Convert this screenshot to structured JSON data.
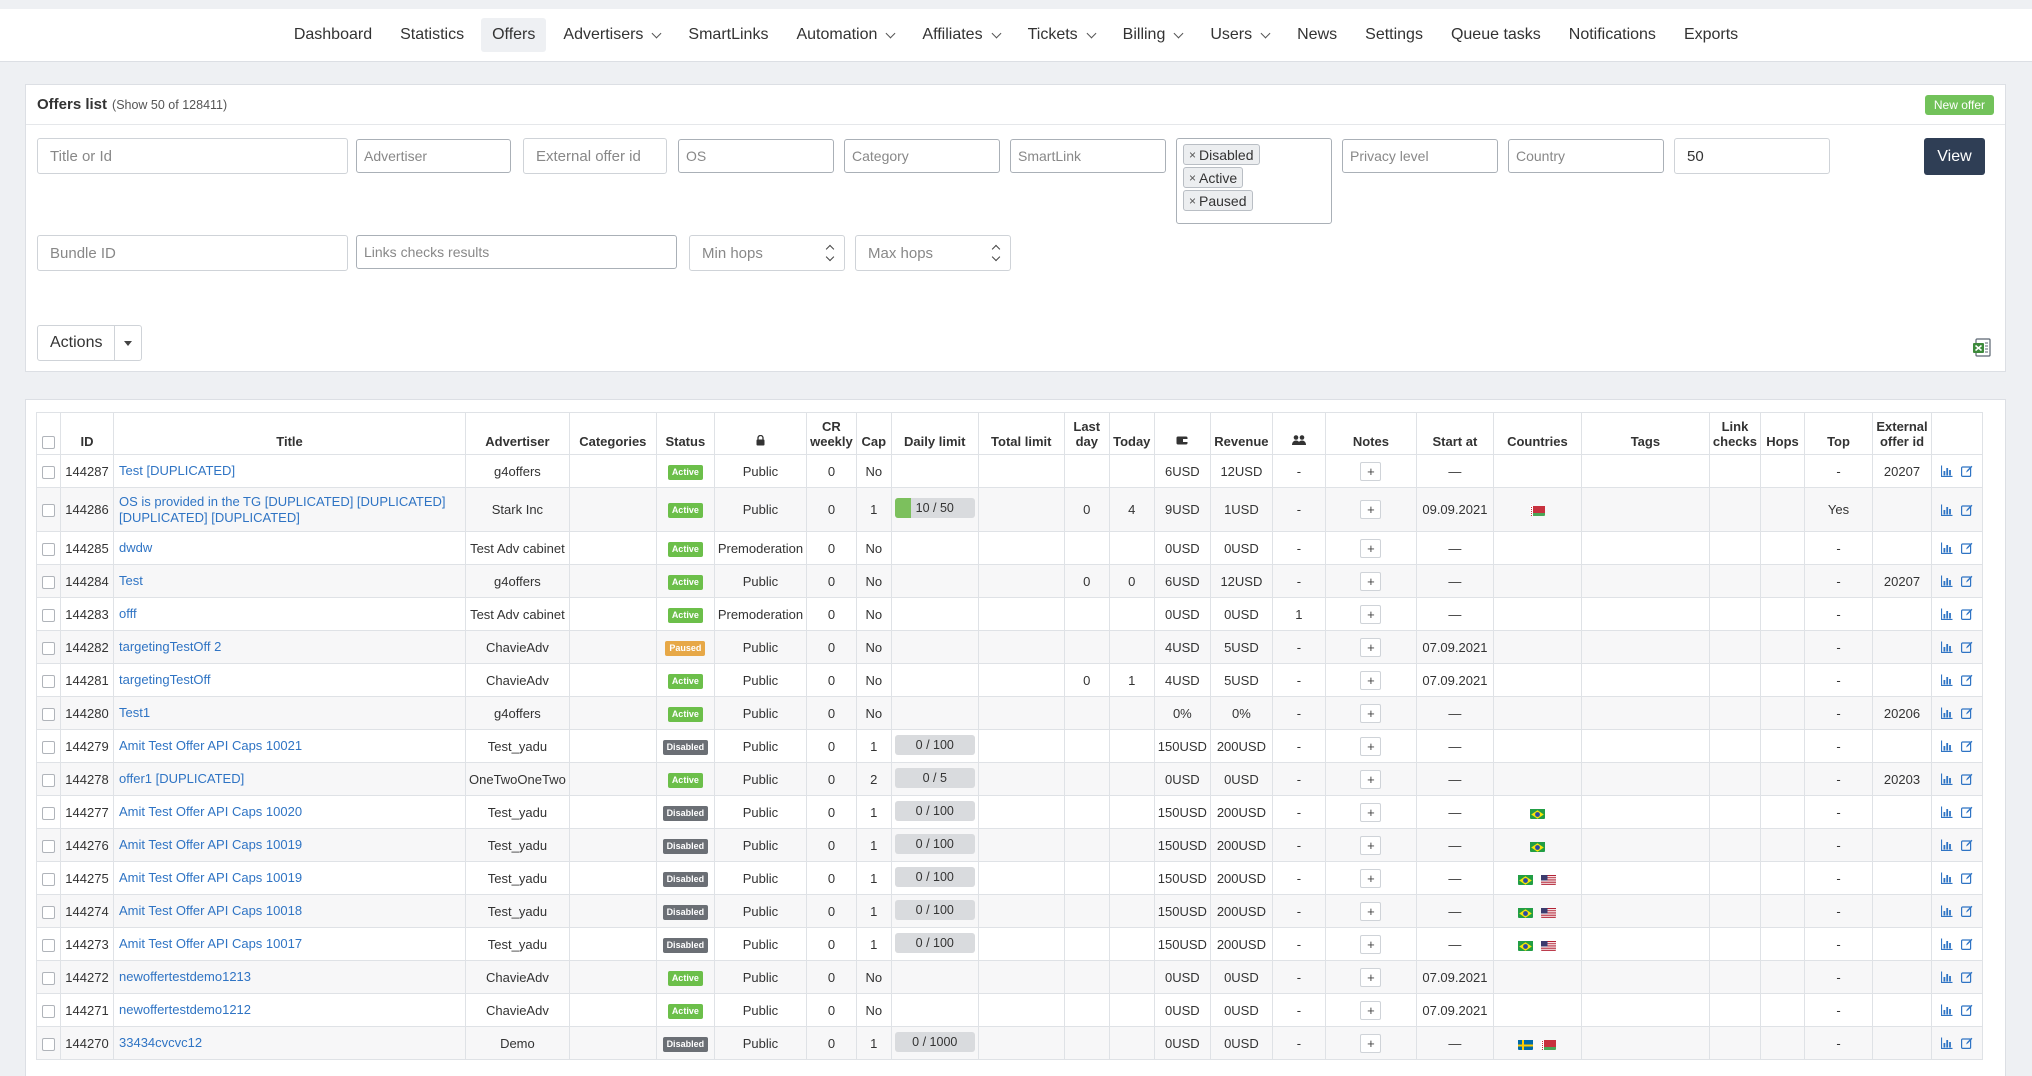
{
  "nav": {
    "items": [
      {
        "label": "Dashboard",
        "dropdown": false,
        "active": false
      },
      {
        "label": "Statistics",
        "dropdown": false,
        "active": false
      },
      {
        "label": "Offers",
        "dropdown": false,
        "active": true
      },
      {
        "label": "Advertisers",
        "dropdown": true,
        "active": false
      },
      {
        "label": "SmartLinks",
        "dropdown": false,
        "active": false
      },
      {
        "label": "Automation",
        "dropdown": true,
        "active": false
      },
      {
        "label": "Affiliates",
        "dropdown": true,
        "active": false
      },
      {
        "label": "Tickets",
        "dropdown": true,
        "active": false
      },
      {
        "label": "Billing",
        "dropdown": true,
        "active": false
      },
      {
        "label": "Users",
        "dropdown": true,
        "active": false
      },
      {
        "label": "News",
        "dropdown": false,
        "active": false
      },
      {
        "label": "Settings",
        "dropdown": false,
        "active": false
      },
      {
        "label": "Queue tasks",
        "dropdown": false,
        "active": false
      },
      {
        "label": "Notifications",
        "dropdown": false,
        "active": false
      },
      {
        "label": "Exports",
        "dropdown": false,
        "active": false
      }
    ]
  },
  "filters": {
    "title": "Offers list",
    "subtitle": "(Show 50 of 128411)",
    "new_offer_label": "New offer",
    "title_or_id_placeholder": "Title or Id",
    "advertiser_placeholder": "Advertiser",
    "external_offer_id_placeholder": "External offer id",
    "os_placeholder": "OS",
    "category_placeholder": "Category",
    "smartlink_placeholder": "SmartLink",
    "status_tags": [
      "Disabled",
      "Active",
      "Paused"
    ],
    "privacy_level_placeholder": "Privacy level",
    "country_placeholder": "Country",
    "per_page_value": "50",
    "view_label": "View",
    "bundle_id_placeholder": "Bundle ID",
    "links_checks_placeholder": "Links checks results",
    "min_hops_placeholder": "Min hops",
    "max_hops_placeholder": "Max hops",
    "actions_label": "Actions"
  },
  "table": {
    "headers": {
      "id": "ID",
      "title": "Title",
      "advertiser": "Advertiser",
      "categories": "Categories",
      "status": "Status",
      "cr_weekly": "CR weekly",
      "cap": "Cap",
      "daily_limit": "Daily limit",
      "total_limit": "Total limit",
      "last_day": "Last day",
      "today": "Today",
      "revenue": "Revenue",
      "notes": "Notes",
      "start_at": "Start at",
      "countries": "Countries",
      "tags": "Tags",
      "link_checks": "Link checks",
      "hops": "Hops",
      "top": "Top",
      "external_offer_id": "External offer id"
    },
    "rows": [
      {
        "id": "144287",
        "title": "Test [DUPLICATED]",
        "advertiser": "g4offers",
        "status": "Active",
        "privacy": "Public",
        "cr": "0",
        "cap": "No",
        "daily": "",
        "daily_fill": 0,
        "last_day": "",
        "today": "",
        "payout": "6USD",
        "revenue": "12USD",
        "affiliates": "-",
        "start": "—",
        "flags": [],
        "top": "-",
        "ext": "20207"
      },
      {
        "id": "144286",
        "title": "OS is provided in the TG [DUPLICATED] [DUPLICATED] [DUPLICATED] [DUPLICATED]",
        "advertiser": "Stark Inc",
        "status": "Active",
        "privacy": "Public",
        "cr": "0",
        "cap": "1",
        "daily": "10 / 50",
        "daily_fill": 0.2,
        "last_day": "0",
        "today": "4",
        "payout": "9USD",
        "revenue": "1USD",
        "affiliates": "-",
        "start": "09.09.2021",
        "flags": [
          "by"
        ],
        "top": "Yes",
        "ext": ""
      },
      {
        "id": "144285",
        "title": "dwdw",
        "advertiser": "Test Adv cabinet",
        "status": "Active",
        "privacy": "Premoderation",
        "cr": "0",
        "cap": "No",
        "daily": "",
        "daily_fill": 0,
        "last_day": "",
        "today": "",
        "payout": "0USD",
        "revenue": "0USD",
        "affiliates": "-",
        "start": "—",
        "flags": [],
        "top": "-",
        "ext": ""
      },
      {
        "id": "144284",
        "title": "Test",
        "advertiser": "g4offers",
        "status": "Active",
        "privacy": "Public",
        "cr": "0",
        "cap": "No",
        "daily": "",
        "daily_fill": 0,
        "last_day": "0",
        "today": "0",
        "payout": "6USD",
        "revenue": "12USD",
        "affiliates": "-",
        "start": "—",
        "flags": [],
        "top": "-",
        "ext": "20207"
      },
      {
        "id": "144283",
        "title": "offf",
        "advertiser": "Test Adv cabinet",
        "status": "Active",
        "privacy": "Premoderation",
        "cr": "0",
        "cap": "No",
        "daily": "",
        "daily_fill": 0,
        "last_day": "",
        "today": "",
        "payout": "0USD",
        "revenue": "0USD",
        "affiliates": "1",
        "start": "—",
        "flags": [],
        "top": "-",
        "ext": ""
      },
      {
        "id": "144282",
        "title": "targetingTestOff 2",
        "advertiser": "ChavieAdv",
        "status": "Paused",
        "privacy": "Public",
        "cr": "0",
        "cap": "No",
        "daily": "",
        "daily_fill": 0,
        "last_day": "",
        "today": "",
        "payout": "4USD",
        "revenue": "5USD",
        "affiliates": "-",
        "start": "07.09.2021",
        "flags": [],
        "top": "-",
        "ext": ""
      },
      {
        "id": "144281",
        "title": "targetingTestOff",
        "advertiser": "ChavieAdv",
        "status": "Active",
        "privacy": "Public",
        "cr": "0",
        "cap": "No",
        "daily": "",
        "daily_fill": 0,
        "last_day": "0",
        "today": "1",
        "payout": "4USD",
        "revenue": "5USD",
        "affiliates": "-",
        "start": "07.09.2021",
        "flags": [],
        "top": "-",
        "ext": ""
      },
      {
        "id": "144280",
        "title": "Test1",
        "advertiser": "g4offers",
        "status": "Active",
        "privacy": "Public",
        "cr": "0",
        "cap": "No",
        "daily": "",
        "daily_fill": 0,
        "last_day": "",
        "today": "",
        "payout": "0%",
        "revenue": "0%",
        "affiliates": "-",
        "start": "—",
        "flags": [],
        "top": "-",
        "ext": "20206"
      },
      {
        "id": "144279",
        "title": "Amit Test Offer API Caps 10021",
        "advertiser": "Test_yadu",
        "status": "Disabled",
        "privacy": "Public",
        "cr": "0",
        "cap": "1",
        "daily": "0 / 100",
        "daily_fill": 0,
        "last_day": "",
        "today": "",
        "payout": "150USD",
        "revenue": "200USD",
        "affiliates": "-",
        "start": "—",
        "flags": [],
        "top": "-",
        "ext": ""
      },
      {
        "id": "144278",
        "title": "offer1 [DUPLICATED]",
        "advertiser": "OneTwoOneTwo",
        "status": "Active",
        "privacy": "Public",
        "cr": "0",
        "cap": "2",
        "daily": "0 / 5",
        "daily_fill": 0,
        "last_day": "",
        "today": "",
        "payout": "0USD",
        "revenue": "0USD",
        "affiliates": "-",
        "start": "—",
        "flags": [],
        "top": "-",
        "ext": "20203"
      },
      {
        "id": "144277",
        "title": "Amit Test Offer API Caps 10020",
        "advertiser": "Test_yadu",
        "status": "Disabled",
        "privacy": "Public",
        "cr": "0",
        "cap": "1",
        "daily": "0 / 100",
        "daily_fill": 0,
        "last_day": "",
        "today": "",
        "payout": "150USD",
        "revenue": "200USD",
        "affiliates": "-",
        "start": "—",
        "flags": [
          "br"
        ],
        "top": "-",
        "ext": ""
      },
      {
        "id": "144276",
        "title": "Amit Test Offer API Caps 10019",
        "advertiser": "Test_yadu",
        "status": "Disabled",
        "privacy": "Public",
        "cr": "0",
        "cap": "1",
        "daily": "0 / 100",
        "daily_fill": 0,
        "last_day": "",
        "today": "",
        "payout": "150USD",
        "revenue": "200USD",
        "affiliates": "-",
        "start": "—",
        "flags": [
          "br"
        ],
        "top": "-",
        "ext": ""
      },
      {
        "id": "144275",
        "title": "Amit Test Offer API Caps 10019",
        "advertiser": "Test_yadu",
        "status": "Disabled",
        "privacy": "Public",
        "cr": "0",
        "cap": "1",
        "daily": "0 / 100",
        "daily_fill": 0,
        "last_day": "",
        "today": "",
        "payout": "150USD",
        "revenue": "200USD",
        "affiliates": "-",
        "start": "—",
        "flags": [
          "br",
          "us"
        ],
        "top": "-",
        "ext": ""
      },
      {
        "id": "144274",
        "title": "Amit Test Offer API Caps 10018",
        "advertiser": "Test_yadu",
        "status": "Disabled",
        "privacy": "Public",
        "cr": "0",
        "cap": "1",
        "daily": "0 / 100",
        "daily_fill": 0,
        "last_day": "",
        "today": "",
        "payout": "150USD",
        "revenue": "200USD",
        "affiliates": "-",
        "start": "—",
        "flags": [
          "br",
          "us"
        ],
        "top": "-",
        "ext": ""
      },
      {
        "id": "144273",
        "title": "Amit Test Offer API Caps 10017",
        "advertiser": "Test_yadu",
        "status": "Disabled",
        "privacy": "Public",
        "cr": "0",
        "cap": "1",
        "daily": "0 / 100",
        "daily_fill": 0,
        "last_day": "",
        "today": "",
        "payout": "150USD",
        "revenue": "200USD",
        "affiliates": "-",
        "start": "—",
        "flags": [
          "br",
          "us"
        ],
        "top": "-",
        "ext": ""
      },
      {
        "id": "144272",
        "title": "newoffertestdemo1213",
        "advertiser": "ChavieAdv",
        "status": "Active",
        "privacy": "Public",
        "cr": "0",
        "cap": "No",
        "daily": "",
        "daily_fill": 0,
        "last_day": "",
        "today": "",
        "payout": "0USD",
        "revenue": "0USD",
        "affiliates": "-",
        "start": "07.09.2021",
        "flags": [],
        "top": "-",
        "ext": ""
      },
      {
        "id": "144271",
        "title": "newoffertestdemo1212",
        "advertiser": "ChavieAdv",
        "status": "Active",
        "privacy": "Public",
        "cr": "0",
        "cap": "No",
        "daily": "",
        "daily_fill": 0,
        "last_day": "",
        "today": "",
        "payout": "0USD",
        "revenue": "0USD",
        "affiliates": "-",
        "start": "07.09.2021",
        "flags": [],
        "top": "-",
        "ext": ""
      },
      {
        "id": "144270",
        "title": "33434cvcvc12",
        "advertiser": "Demo",
        "status": "Disabled",
        "privacy": "Public",
        "cr": "0",
        "cap": "1",
        "daily": "0 / 1000",
        "daily_fill": 0,
        "last_day": "",
        "today": "",
        "payout": "0USD",
        "revenue": "0USD",
        "affiliates": "-",
        "start": "—",
        "flags": [
          "se",
          "by"
        ],
        "top": "-",
        "ext": ""
      }
    ]
  },
  "colors": {
    "status_active": "#6cbf4a",
    "status_paused": "#e7a847",
    "status_disabled": "#6b6f75",
    "link": "#2f74c4",
    "primary_button": "#2f3e55",
    "new_offer_button": "#72c25a"
  }
}
